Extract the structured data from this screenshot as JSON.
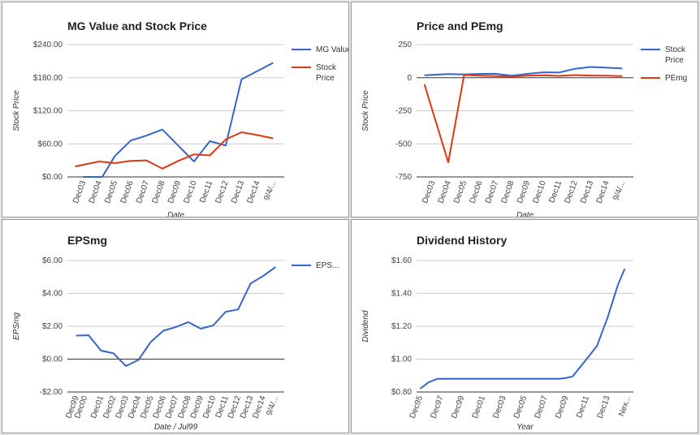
{
  "chart_data": [
    {
      "type": "line",
      "title": "MG Value and Stock Price",
      "xlabel": "Date",
      "ylabel": "Stock Price",
      "categories": [
        "Dec03",
        "Dec04",
        "Dec05",
        "Dec06",
        "Dec07",
        "Dec08",
        "Dec09",
        "Dec10",
        "Dec11",
        "Dec12",
        "Dec13",
        "Dec14",
        "9/4/..."
      ],
      "x": [
        0,
        1,
        2,
        3,
        4,
        5,
        6,
        7,
        8,
        9,
        10,
        11,
        12,
        13,
        14,
        15,
        16,
        17,
        18
      ],
      "ylim": [
        0,
        240
      ],
      "ytick_values": [
        0,
        60,
        120,
        180,
        240
      ],
      "yticks": [
        "$0.00",
        "$60.00",
        "$120.00",
        "$180.00",
        "$240.00"
      ],
      "grid": true,
      "legend": "right",
      "series": [
        {
          "name": "MG Value",
          "color": "#3366cc",
          "points": [
            [
              0,
              0
            ],
            [
              1.2,
              0
            ],
            [
              2,
              38
            ],
            [
              3,
              66
            ],
            [
              4,
              75
            ],
            [
              5,
              86
            ],
            [
              6,
              57
            ],
            [
              7,
              28
            ],
            [
              8,
              65
            ],
            [
              9,
              57
            ],
            [
              10,
              177
            ],
            [
              12,
              207
            ]
          ]
        },
        {
          "name": "Stock Price",
          "color": "#dc3912",
          "points": [
            [
              -0.5,
              19
            ],
            [
              1,
              28
            ],
            [
              2,
              25
            ],
            [
              3,
              29
            ],
            [
              4,
              30
            ],
            [
              5,
              15
            ],
            [
              6,
              29
            ],
            [
              7,
              41
            ],
            [
              8,
              39
            ],
            [
              9,
              68
            ],
            [
              10,
              81
            ],
            [
              11,
              76
            ],
            [
              12,
              70
            ]
          ]
        }
      ]
    },
    {
      "type": "line",
      "title": "Price and PEmg",
      "xlabel": "Date",
      "ylabel": "Stock Price",
      "categories": [
        "Dec03",
        "Dec04",
        "Dec05",
        "Dec06",
        "Dec07",
        "Dec08",
        "Dec09",
        "Dec10",
        "Dec11",
        "Dec12",
        "Dec13",
        "Dec14",
        "9/4/..."
      ],
      "ylim": [
        -750,
        250
      ],
      "ytick_values": [
        -750,
        -500,
        -250,
        0,
        250
      ],
      "yticks": [
        "-750",
        "-500",
        "-250",
        "0",
        "250"
      ],
      "grid": true,
      "legend": "right",
      "series": [
        {
          "name": "Stock Price",
          "color": "#3366cc",
          "points": [
            [
              -0.5,
              19
            ],
            [
              1,
              28
            ],
            [
              2,
              25
            ],
            [
              3,
              29
            ],
            [
              4,
              30
            ],
            [
              5,
              15
            ],
            [
              6,
              29
            ],
            [
              7,
              41
            ],
            [
              8,
              39
            ],
            [
              9,
              68
            ],
            [
              10,
              81
            ],
            [
              11,
              76
            ],
            [
              12,
              70
            ]
          ]
        },
        {
          "name": "PEmg",
          "color": "#dc3912",
          "points": [
            [
              -0.5,
              -50
            ],
            [
              1,
              -640
            ],
            [
              2,
              20
            ],
            [
              3,
              15
            ],
            [
              4,
              12
            ],
            [
              5,
              8
            ],
            [
              6,
              15
            ],
            [
              7,
              18
            ],
            [
              8,
              14
            ],
            [
              9,
              20
            ],
            [
              10,
              16
            ],
            [
              11,
              15
            ],
            [
              12,
              12
            ]
          ]
        }
      ]
    },
    {
      "type": "line",
      "title": "EPSmg",
      "xlabel": "Date / Jul99",
      "ylabel": "EPSmg",
      "categories": [
        "Dec99",
        "Dec00",
        "Dec01",
        "Dec02",
        "Dec03",
        "Dec04",
        "Dec05",
        "Dec06",
        "Dec07",
        "Dec08",
        "Dec09",
        "Dec10",
        "Dec11",
        "Dec12",
        "Dec13",
        "Dec14",
        "9/4/..."
      ],
      "ylim": [
        -2,
        6
      ],
      "ytick_values": [
        -2,
        0,
        2,
        4,
        6
      ],
      "yticks": [
        "-$2.00",
        "$0.00",
        "$2.00",
        "$4.00",
        "$6.00"
      ],
      "grid": true,
      "legend": "right",
      "series": [
        {
          "name": "EPS...",
          "color": "#3366cc",
          "points": [
            [
              0,
              1.43
            ],
            [
              1,
              1.45
            ],
            [
              2,
              0.52
            ],
            [
              3,
              0.35
            ],
            [
              4,
              -0.42
            ],
            [
              5,
              -0.05
            ],
            [
              6,
              1.05
            ],
            [
              7,
              1.73
            ],
            [
              8,
              1.95
            ],
            [
              9,
              2.25
            ],
            [
              10,
              1.85
            ],
            [
              11,
              2.05
            ],
            [
              12,
              2.88
            ],
            [
              13,
              3.02
            ],
            [
              14,
              4.6
            ],
            [
              15,
              5.05
            ],
            [
              16,
              5.6
            ]
          ]
        }
      ]
    },
    {
      "type": "line",
      "title": "Dividend History",
      "xlabel": "Year",
      "ylabel": "Dividend",
      "categories": [
        "Dec95",
        "Dec97",
        "Dec99",
        "Dec01",
        "Dec03",
        "Dec05",
        "Dec07",
        "Dec09",
        "Dec11",
        "Dec13",
        "Nex..."
      ],
      "ylim": [
        0.8,
        1.6
      ],
      "ytick_values": [
        0.8,
        1.0,
        1.2,
        1.4,
        1.6
      ],
      "yticks": [
        "$0.80",
        "$1.00",
        "$1.20",
        "$1.40",
        "$1.60"
      ],
      "grid": true,
      "legend": "none",
      "series": [
        {
          "name": "",
          "color": "#3366cc",
          "points": [
            [
              0,
              0.82
            ],
            [
              0.5,
              0.86
            ],
            [
              1,
              0.88
            ],
            [
              2,
              0.88
            ],
            [
              3,
              0.88
            ],
            [
              4,
              0.88
            ],
            [
              5,
              0.88
            ],
            [
              6,
              0.88
            ],
            [
              7,
              0.88
            ],
            [
              8,
              0.88
            ],
            [
              8.4,
              0.885
            ],
            [
              8.8,
              0.895
            ],
            [
              9.6,
              1.0
            ],
            [
              10.2,
              1.08
            ],
            [
              10.8,
              1.25
            ],
            [
              11.4,
              1.45
            ],
            [
              11.8,
              1.55
            ]
          ]
        }
      ]
    }
  ]
}
